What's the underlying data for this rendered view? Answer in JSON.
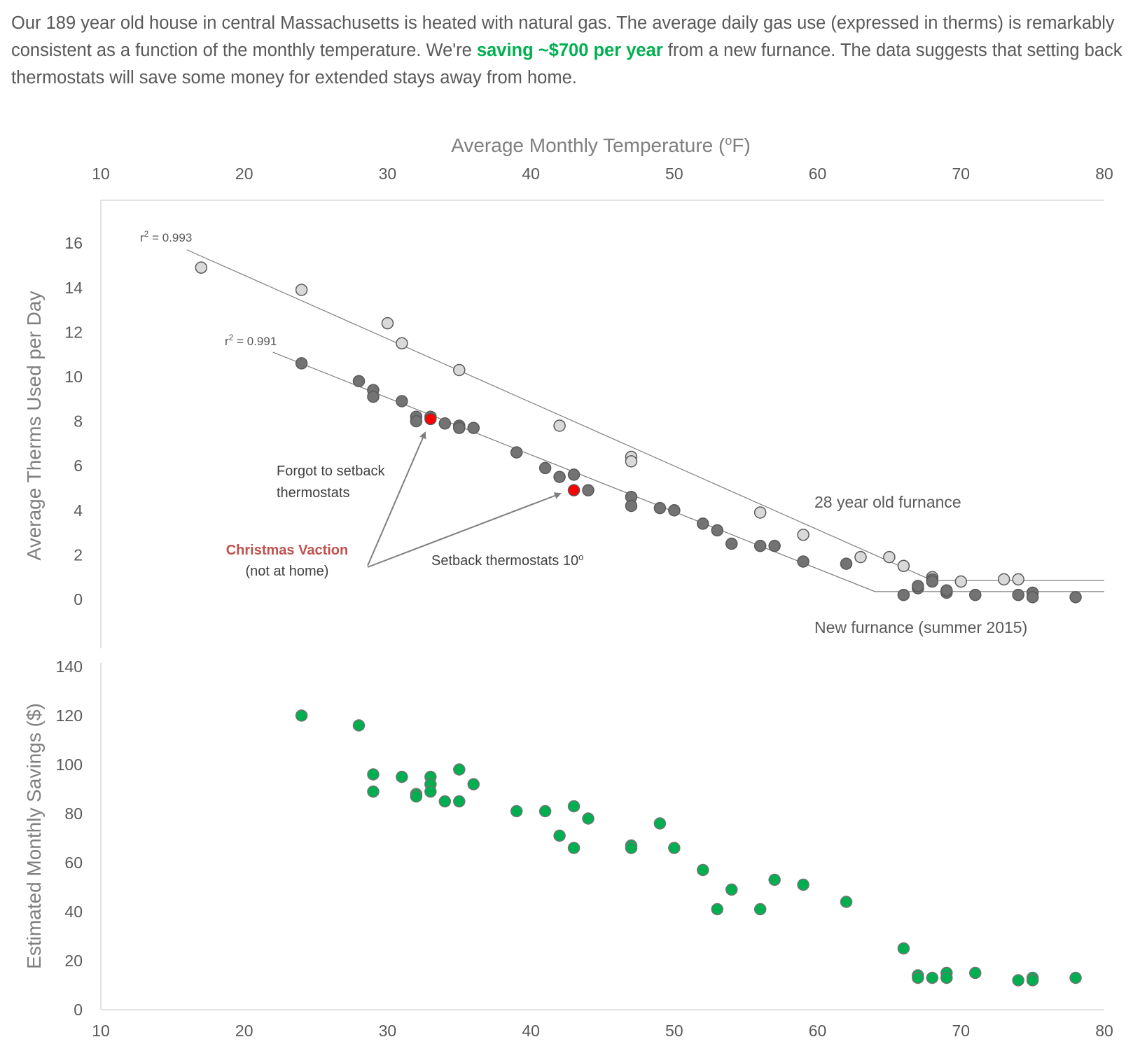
{
  "intro": {
    "part1": "Our 189 year old house in central Massachusetts is heated with natural gas. The average daily gas use (expressed in therms) is remarkably consistent as a function of the monthly temperature. We're ",
    "highlight": "saving ~$700 per year",
    "part2": " from a new furnance. The data suggests that setting back thermostats will save some money for extended stays away from home.",
    "highlight_color": "#00b050"
  },
  "chart_data": [
    {
      "type": "scatter",
      "xlabel": "Average Monthly Temperature (oF)",
      "ylabel": "Average Therms Used per Day",
      "xlim": [
        10,
        80
      ],
      "ylim": [
        -2,
        17
      ],
      "xticks": [
        10,
        20,
        30,
        40,
        50,
        60,
        70,
        80
      ],
      "yticks": [
        0,
        2,
        4,
        6,
        8,
        10,
        12,
        14,
        16
      ],
      "x_axis_position": "top",
      "grid": false,
      "series": [
        {
          "name": "28 year old furnance",
          "color": "#d9d9d9",
          "points": [
            [
              17,
              14.9
            ],
            [
              24,
              13.9
            ],
            [
              30,
              12.4
            ],
            [
              31,
              11.5
            ],
            [
              35,
              10.3
            ],
            [
              42,
              7.8
            ],
            [
              47,
              6.4
            ],
            [
              47,
              6.2
            ],
            [
              56,
              3.9
            ],
            [
              59,
              2.9
            ],
            [
              63,
              1.9
            ],
            [
              65,
              1.9
            ],
            [
              66,
              1.5
            ],
            [
              68,
              1.0
            ],
            [
              70,
              0.8
            ],
            [
              73,
              0.9
            ],
            [
              74,
              0.9
            ]
          ],
          "trendline": {
            "points": [
              [
                16,
                15.7
              ],
              [
                68,
                0.85
              ],
              [
                80,
                0.85
              ]
            ],
            "r2_label": "r² = 0.993"
          }
        },
        {
          "name": "New furnance (summer 2015)",
          "color": "#737373",
          "points": [
            [
              24,
              10.6
            ],
            [
              28,
              9.8
            ],
            [
              29,
              9.4
            ],
            [
              29,
              9.1
            ],
            [
              31,
              8.9
            ],
            [
              32,
              8.2
            ],
            [
              32,
              8.0
            ],
            [
              33,
              8.2
            ],
            [
              34,
              7.9
            ],
            [
              35,
              7.8
            ],
            [
              35,
              7.7
            ],
            [
              36,
              7.7
            ],
            [
              39,
              6.6
            ],
            [
              41,
              5.9
            ],
            [
              42,
              5.5
            ],
            [
              43,
              5.6
            ],
            [
              44,
              4.9
            ],
            [
              47,
              4.6
            ],
            [
              47,
              4.2
            ],
            [
              49,
              4.1
            ],
            [
              50,
              4.0
            ],
            [
              52,
              3.4
            ],
            [
              53,
              3.1
            ],
            [
              54,
              2.5
            ],
            [
              56,
              2.4
            ],
            [
              57,
              2.4
            ],
            [
              59,
              1.7
            ],
            [
              62,
              1.6
            ],
            [
              66,
              0.2
            ],
            [
              67,
              0.5
            ],
            [
              67,
              0.6
            ],
            [
              68,
              0.9
            ],
            [
              68,
              0.8
            ],
            [
              69,
              0.3
            ],
            [
              69,
              0.4
            ],
            [
              71,
              0.2
            ],
            [
              74,
              0.2
            ],
            [
              75,
              0.3
            ],
            [
              75,
              0.1
            ],
            [
              78,
              0.1
            ]
          ],
          "trendline": {
            "points": [
              [
                22,
                11.1
              ],
              [
                64,
                0.35
              ],
              [
                80,
                0.35
              ]
            ],
            "r2_label": "r² = 0.991"
          }
        },
        {
          "name": "Christmas Vaction",
          "color": "#ff0000",
          "points": [
            [
              33,
              8.1
            ],
            [
              43,
              4.9
            ]
          ]
        }
      ],
      "annotations": {
        "christmas_title": "Christmas Vaction",
        "christmas_title_color": "#c0504d",
        "christmas_sub": "(not at home)",
        "forgot_line1": "Forgot to setback",
        "forgot_line2": "thermostats",
        "setback": "Setback thermostats 10o",
        "old_furnace": "28 year old furnance",
        "new_furnace": "New furnance (summer 2015)"
      }
    },
    {
      "type": "scatter",
      "xlabel": "",
      "ylabel": "Estimated Monthly Savings  ($)",
      "xlim": [
        10,
        80
      ],
      "ylim": [
        0,
        140
      ],
      "xticks": [
        10,
        20,
        30,
        40,
        50,
        60,
        70,
        80
      ],
      "yticks": [
        0,
        20,
        40,
        60,
        80,
        100,
        120,
        140
      ],
      "grid": false,
      "series": [
        {
          "name": "",
          "color": "#00b050",
          "points": [
            [
              24,
              120
            ],
            [
              28,
              116
            ],
            [
              29,
              96
            ],
            [
              29,
              89
            ],
            [
              31,
              95
            ],
            [
              32,
              88
            ],
            [
              32,
              87
            ],
            [
              33,
              95
            ],
            [
              33,
              92
            ],
            [
              33,
              89
            ],
            [
              34,
              85
            ],
            [
              35,
              98
            ],
            [
              35,
              85
            ],
            [
              36,
              92
            ],
            [
              39,
              81
            ],
            [
              41,
              81
            ],
            [
              42,
              71
            ],
            [
              43,
              83
            ],
            [
              43,
              66
            ],
            [
              44,
              78
            ],
            [
              47,
              67
            ],
            [
              47,
              66
            ],
            [
              49,
              76
            ],
            [
              50,
              66
            ],
            [
              52,
              57
            ],
            [
              53,
              41
            ],
            [
              54,
              49
            ],
            [
              56,
              41
            ],
            [
              57,
              53
            ],
            [
              59,
              51
            ],
            [
              62,
              44
            ],
            [
              66,
              25
            ],
            [
              67,
              14
            ],
            [
              67,
              13
            ],
            [
              68,
              13
            ],
            [
              69,
              15
            ],
            [
              69,
              13
            ],
            [
              71,
              15
            ],
            [
              74,
              12
            ],
            [
              75,
              13
            ],
            [
              75,
              12
            ],
            [
              78,
              13
            ]
          ]
        }
      ]
    }
  ]
}
